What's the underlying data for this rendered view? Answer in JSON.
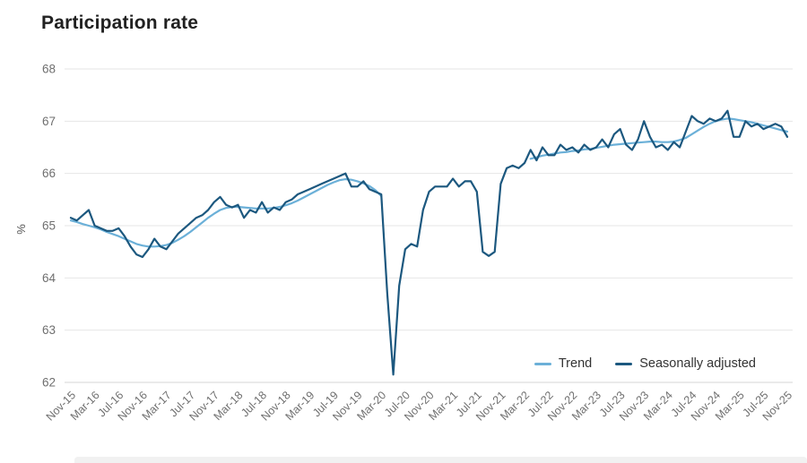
{
  "title": "Participation rate",
  "ylabel": "%",
  "colors": {
    "trend": "#6BB0D8",
    "seasonally_adjusted": "#1C587F",
    "grid": "#E6E6E6",
    "baseline": "#D5D5D5",
    "axis_text": "#6F6F6F",
    "title_text": "#212121"
  },
  "legend": [
    {
      "label": "Trend",
      "color": "#6BB0D8"
    },
    {
      "label": "Seasonally adjusted",
      "color": "#1C587F"
    }
  ],
  "chart_data": {
    "type": "line",
    "title": "Participation rate",
    "xlabel": "",
    "ylabel": "%",
    "ylim": [
      62,
      68
    ],
    "yticks": [
      62,
      63,
      64,
      65,
      66,
      67,
      68
    ],
    "grid": "horizontal",
    "legend_position": "bottom-right",
    "frequency": "monthly",
    "x_start": "Nov-2015",
    "x_end": "Nov-2025",
    "x_tick_every": 4,
    "x_tick_labels": [
      "Nov-15",
      "Mar-16",
      "Jul-16",
      "Nov-16",
      "Mar-17",
      "Jul-17",
      "Nov-17",
      "Mar-18",
      "Jul-18",
      "Nov-18",
      "Mar-19",
      "Jul-19",
      "Nov-19",
      "Mar-20",
      "Jul-20",
      "Nov-20",
      "Mar-21",
      "Jul-21",
      "Nov-21",
      "Mar-22",
      "Jul-22",
      "Nov-22",
      "Mar-23",
      "Jul-23",
      "Nov-23",
      "Mar-24",
      "Jul-24",
      "Nov-24",
      "Mar-25",
      "Jul-25",
      "Nov-25"
    ],
    "series": [
      {
        "name": "Trend",
        "color": "#6BB0D8",
        "note": "suspended between Apr-2020 and Mar-2022 (null values)",
        "values": [
          65.1,
          65.07,
          65.03,
          65.0,
          64.97,
          64.93,
          64.88,
          64.84,
          64.8,
          64.75,
          64.7,
          64.65,
          64.62,
          64.6,
          64.6,
          64.61,
          64.63,
          64.67,
          64.73,
          64.8,
          64.88,
          64.97,
          65.06,
          65.15,
          65.23,
          65.3,
          65.34,
          65.36,
          65.36,
          65.35,
          65.34,
          65.33,
          65.33,
          65.33,
          65.34,
          65.36,
          65.39,
          65.43,
          65.48,
          65.54,
          65.6,
          65.66,
          65.72,
          65.78,
          65.83,
          65.87,
          65.89,
          65.88,
          65.85,
          65.81,
          65.76,
          65.68,
          65.57,
          null,
          null,
          null,
          null,
          null,
          null,
          null,
          null,
          null,
          null,
          null,
          null,
          null,
          null,
          null,
          null,
          null,
          null,
          null,
          null,
          null,
          null,
          null,
          null,
          66.28,
          66.31,
          66.34,
          66.36,
          66.38,
          66.4,
          66.41,
          66.43,
          66.44,
          66.46,
          66.47,
          66.49,
          66.51,
          66.53,
          66.55,
          66.56,
          66.57,
          66.58,
          66.59,
          66.6,
          66.61,
          66.61,
          66.6,
          66.6,
          66.61,
          66.64,
          66.68,
          66.75,
          66.82,
          66.89,
          66.95,
          67.0,
          67.03,
          67.05,
          67.04,
          67.02,
          67.0,
          66.98,
          66.95,
          66.92,
          66.89,
          66.86,
          66.83,
          66.8
        ]
      },
      {
        "name": "Seasonally adjusted",
        "color": "#1C587F",
        "values": [
          65.15,
          65.1,
          65.2,
          65.3,
          65.0,
          64.95,
          64.9,
          64.9,
          64.95,
          64.8,
          64.6,
          64.45,
          64.4,
          64.55,
          64.75,
          64.6,
          64.55,
          64.7,
          64.85,
          64.95,
          65.05,
          65.15,
          65.2,
          65.3,
          65.45,
          65.55,
          65.4,
          65.35,
          65.4,
          65.15,
          65.3,
          65.25,
          65.45,
          65.25,
          65.35,
          65.3,
          65.45,
          65.5,
          65.6,
          65.65,
          65.7,
          65.75,
          65.8,
          65.85,
          65.9,
          65.95,
          66.0,
          65.75,
          65.75,
          65.85,
          65.7,
          65.65,
          65.6,
          63.7,
          62.15,
          63.85,
          64.55,
          64.65,
          64.6,
          65.3,
          65.65,
          65.75,
          65.75,
          65.75,
          65.9,
          65.75,
          65.85,
          65.85,
          65.65,
          64.5,
          64.42,
          64.5,
          65.8,
          66.1,
          66.15,
          66.1,
          66.2,
          66.45,
          66.25,
          66.5,
          66.35,
          66.35,
          66.55,
          66.45,
          66.5,
          66.4,
          66.55,
          66.45,
          66.5,
          66.65,
          66.5,
          66.75,
          66.85,
          66.55,
          66.45,
          66.65,
          67.0,
          66.7,
          66.5,
          66.55,
          66.45,
          66.6,
          66.5,
          66.8,
          67.1,
          67.0,
          66.95,
          67.05,
          67.0,
          67.05,
          67.2,
          66.7,
          66.7,
          67.0,
          66.9,
          66.95,
          66.85,
          66.9,
          66.95,
          66.9,
          66.7
        ]
      }
    ]
  }
}
